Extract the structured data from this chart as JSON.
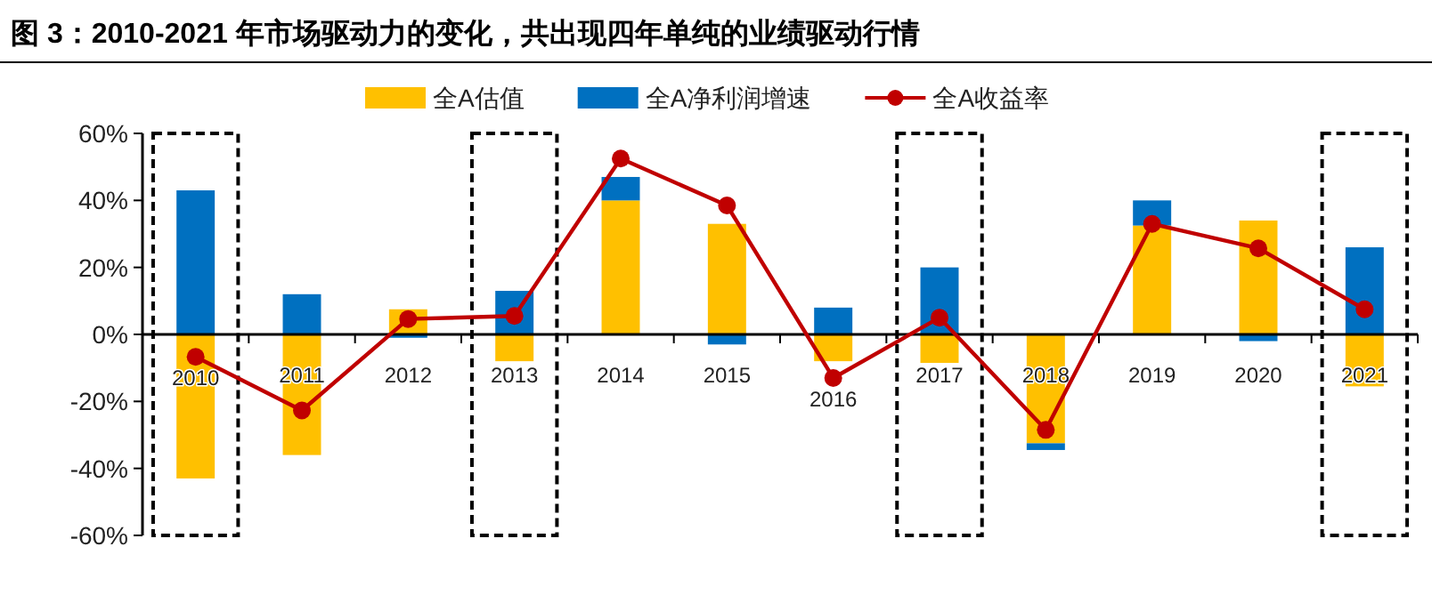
{
  "chart_data": {
    "type": "bar",
    "title": "图 3：2010-2021 年市场驱动力的变化，共出现四年单纯的业绩驱动行情",
    "categories": [
      "2010",
      "2011",
      "2012",
      "2013",
      "2014",
      "2015",
      "2016",
      "2017",
      "2018",
      "2019",
      "2020",
      "2021"
    ],
    "stacked": true,
    "series": [
      {
        "name": "全A估值",
        "color": "#ffc000",
        "values": [
          -43,
          -36,
          7.5,
          -8,
          40,
          33,
          -8,
          -8.5,
          -32.5,
          32.5,
          34,
          -15.5
        ]
      },
      {
        "name": "全A净利润增速",
        "color": "#0070c0",
        "values": [
          43,
          12,
          -1,
          13,
          7,
          -3,
          8,
          20,
          -2,
          7.5,
          -2,
          26
        ]
      },
      {
        "name": "全A收益率",
        "type": "line",
        "color": "#c00000",
        "marker": "circle",
        "values": [
          -6.7,
          -22.7,
          4.6,
          5.5,
          52.5,
          38.5,
          -13,
          5,
          -28.5,
          33,
          25.7,
          7.5
        ]
      }
    ],
    "ylim": [
      -60,
      60
    ],
    "yticks": [
      {
        "value": -60,
        "label": "-60%"
      },
      {
        "value": -40,
        "label": "-40%"
      },
      {
        "value": -20,
        "label": "-20%"
      },
      {
        "value": 0,
        "label": "0%"
      },
      {
        "value": 20,
        "label": "20%"
      },
      {
        "value": 40,
        "label": "40%"
      },
      {
        "value": 60,
        "label": "60%"
      }
    ],
    "grid": false,
    "legend": "top"
  }
}
